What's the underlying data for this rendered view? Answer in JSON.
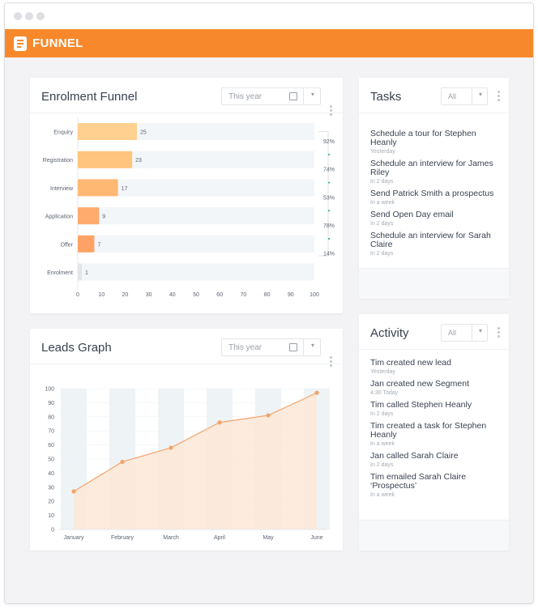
{
  "app": {
    "brand": "FUNNEL"
  },
  "funnel_card": {
    "title": "Enrolment Funnel",
    "period": "This year",
    "chart_data": {
      "type": "bar",
      "orientation": "horizontal",
      "categories": [
        "Enquiry",
        "Registration",
        "Interview",
        "Application",
        "Offer",
        "Enrolment"
      ],
      "values": [
        25,
        23,
        17,
        9,
        7,
        1
      ],
      "conversion": [
        "92%",
        "74%",
        "53%",
        "78%",
        "14%"
      ],
      "xlim": [
        0,
        100
      ],
      "xticks": [
        "0",
        "10",
        "20",
        "30",
        "40",
        "50",
        "60",
        "70",
        "80",
        "90",
        "100"
      ],
      "colors": [
        "#ffd08f",
        "#ffc47e",
        "#ffb873",
        "#ffab6e",
        "#ffa266",
        "#e3e5e8"
      ]
    }
  },
  "leads_card": {
    "title": "Leads Graph",
    "period": "This year",
    "chart_data": {
      "type": "area",
      "categories": [
        "January",
        "February",
        "March",
        "April",
        "May",
        "June"
      ],
      "values": [
        27,
        48,
        58,
        76,
        81,
        97
      ],
      "ylim": [
        0,
        100
      ],
      "yticks": [
        "0",
        "10",
        "20",
        "30",
        "40",
        "50",
        "60",
        "70",
        "80",
        "90",
        "100"
      ],
      "colors": {
        "line": "#f4a36a",
        "fill": "#fde8d7",
        "band": "#eef3f6"
      }
    }
  },
  "tasks_card": {
    "title": "Tasks",
    "filter": "All",
    "items": [
      {
        "text": "Schedule a tour for Stephen Heanly",
        "when": "Yesterday"
      },
      {
        "text": "Schedule an interview for James Riley",
        "when": "In 2 days"
      },
      {
        "text": "Send Patrick Smith a prospectus",
        "when": "In a week"
      },
      {
        "text": "Send Open Day email",
        "when": "In 2 days"
      },
      {
        "text": "Schedule an interview for Sarah Claire",
        "when": "In 2 days"
      }
    ]
  },
  "activity_card": {
    "title": "Activity",
    "filter": "All",
    "items": [
      {
        "text": "Tim created new lead",
        "when": "Yesterday"
      },
      {
        "text": "Jan created new Segment",
        "when": "4:30 Today"
      },
      {
        "text": "Tim called Stephen Heanly",
        "when": "In 2 days"
      },
      {
        "text": "Tim created a task for Stephen Heanly",
        "when": "In a week"
      },
      {
        "text": "Jan called Sarah Claire",
        "when": "In 2 days"
      },
      {
        "text": "Tim emailed Sarah Claire ‘Prospectus’",
        "when": "In a week"
      }
    ]
  },
  "icons": {
    "calendar": "calendar-icon",
    "chevron": "chevron-down-icon",
    "more": "kebab-menu-icon",
    "logo": "funnel-logo-icon"
  }
}
